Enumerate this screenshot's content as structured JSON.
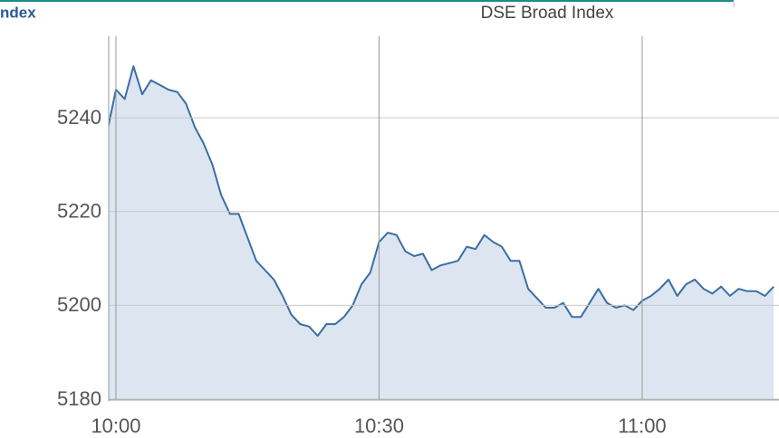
{
  "header": {
    "label": "ndex"
  },
  "chart_data": {
    "type": "area",
    "title": "DSE Broad Index",
    "x": [
      "09:59",
      "10:00",
      "10:01",
      "10:02",
      "10:03",
      "10:04",
      "10:05",
      "10:06",
      "10:07",
      "10:08",
      "10:09",
      "10:10",
      "10:11",
      "10:12",
      "10:13",
      "10:14",
      "10:15",
      "10:16",
      "10:17",
      "10:18",
      "10:19",
      "10:20",
      "10:21",
      "10:22",
      "10:23",
      "10:24",
      "10:25",
      "10:26",
      "10:27",
      "10:28",
      "10:29",
      "10:30",
      "10:31",
      "10:32",
      "10:33",
      "10:34",
      "10:35",
      "10:36",
      "10:37",
      "10:38",
      "10:39",
      "10:40",
      "10:41",
      "10:42",
      "10:43",
      "10:44",
      "10:45",
      "10:46",
      "10:47",
      "10:48",
      "10:49",
      "10:50",
      "10:51",
      "10:52",
      "10:53",
      "10:54",
      "10:55",
      "10:56",
      "10:57",
      "10:58",
      "10:59",
      "11:00",
      "11:01",
      "11:02",
      "11:03",
      "11:04",
      "11:05",
      "11:06",
      "11:07",
      "11:08",
      "11:09",
      "11:10",
      "11:11",
      "11:12",
      "11:13",
      "11:14",
      "11:15"
    ],
    "series": [
      {
        "name": "DSE Broad Index",
        "color": "#3a6ea5",
        "fill": "#dde6f0",
        "values": [
          5237,
          5246,
          5244,
          5251,
          5245,
          5248,
          5247,
          5246,
          5245.5,
          5243,
          5238,
          5234.5,
          5230,
          5223.5,
          5219.5,
          5219.5,
          5214.5,
          5209.5,
          5207.5,
          5205.5,
          5202,
          5198,
          5196,
          5195.5,
          5193.5,
          5196,
          5196,
          5197.5,
          5200,
          5204.5,
          5207,
          5213.5,
          5215.5,
          5215,
          5211.5,
          5210.5,
          5211,
          5207.5,
          5208.5,
          5209,
          5209.5,
          5212.5,
          5212,
          5215,
          5213.5,
          5212.5,
          5209.5,
          5209.5,
          5203.5,
          5201.5,
          5199.5,
          5199.5,
          5200.5,
          5197.5,
          5197.5,
          5200.5,
          5203.5,
          5200.5,
          5199.5,
          5200,
          5199,
          5201,
          5202,
          5203.5,
          5205.5,
          5202,
          5204.5,
          5205.5,
          5203.5,
          5202.5,
          5204,
          5202,
          5203.5,
          5203,
          5203,
          5202,
          5204
        ]
      }
    ],
    "xlim": [
      "09:59",
      "11:16"
    ],
    "xticks": [
      "10:00",
      "10:30",
      "11:00"
    ],
    "ylim": [
      5180,
      5257.4
    ],
    "yticks": [
      5180,
      5200,
      5220,
      5240
    ],
    "grid": true
  }
}
